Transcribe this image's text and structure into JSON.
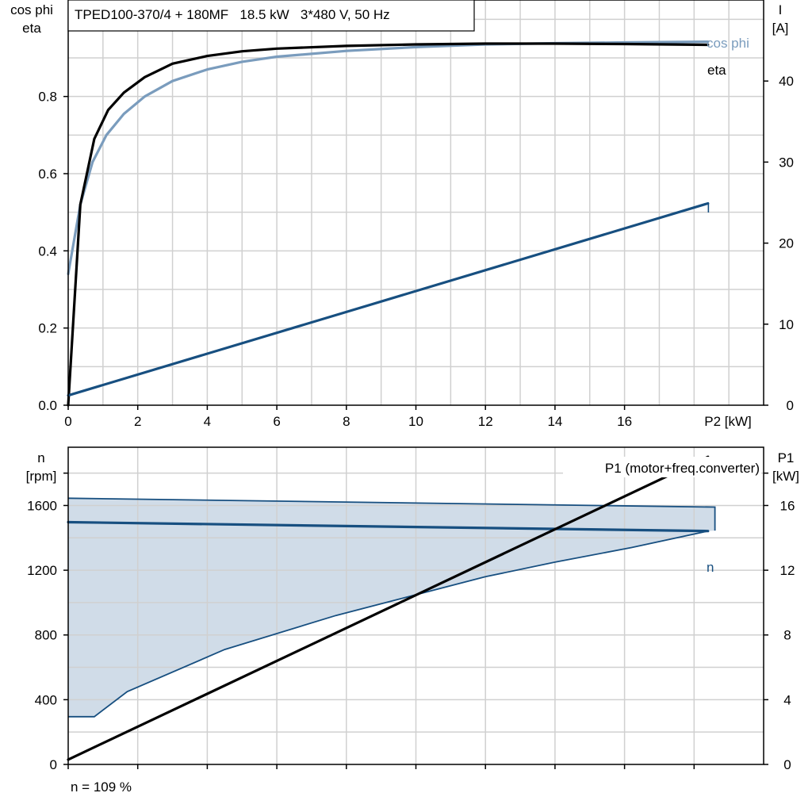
{
  "chart_data": [
    {
      "type": "line",
      "title": "TPED100-370/4 + 180MF   18.5 kW   3*480 V, 50 Hz",
      "xlabel": "P2 [kW]",
      "ylabel_left": [
        "cos phi",
        "eta"
      ],
      "ylabel_right": [
        "I",
        "[A]"
      ],
      "xlim": [
        0,
        20
      ],
      "ylim_left": [
        0,
        1.05
      ],
      "ylim_right": [
        0,
        50
      ],
      "x_ticks": [
        0,
        2,
        4,
        6,
        8,
        10,
        12,
        14,
        16
      ],
      "x_tick_labels": [
        "0",
        "2",
        "4",
        "6",
        "8",
        "10",
        "12",
        "14",
        "16"
      ],
      "y_left_ticks": [
        0.0,
        0.2,
        0.4,
        0.6,
        0.8
      ],
      "y_left_tick_labels": [
        "0.0",
        "0.2",
        "0.4",
        "0.6",
        "0.8"
      ],
      "y_right_ticks": [
        0,
        10,
        20,
        30,
        40
      ],
      "y_right_tick_labels": [
        "0",
        "10",
        "20",
        "30",
        "40"
      ],
      "grid": true,
      "series": [
        {
          "name": "cos phi",
          "axis": "left",
          "color": "#7a9cbd",
          "x": [
            0,
            0.35,
            0.7,
            1.1,
            1.6,
            2.2,
            3,
            4,
            5,
            6,
            8,
            10,
            12,
            14,
            16,
            18.4
          ],
          "y": [
            0.34,
            0.52,
            0.63,
            0.7,
            0.755,
            0.8,
            0.84,
            0.87,
            0.89,
            0.903,
            0.918,
            0.928,
            0.935,
            0.938,
            0.94,
            0.942
          ]
        },
        {
          "name": "eta",
          "axis": "left",
          "color": "#000000",
          "x": [
            0,
            0.35,
            0.75,
            1.15,
            1.6,
            2.2,
            3,
            4,
            5,
            6,
            8,
            10,
            12,
            14,
            16,
            18.4
          ],
          "y": [
            0.0,
            0.52,
            0.69,
            0.765,
            0.81,
            0.85,
            0.885,
            0.905,
            0.917,
            0.924,
            0.931,
            0.935,
            0.937,
            0.937,
            0.936,
            0.934
          ]
        },
        {
          "name": "I",
          "axis": "right",
          "color": "#174f80",
          "x": [
            0,
            18.4
          ],
          "y": [
            1.2,
            24.9
          ]
        }
      ]
    },
    {
      "type": "line",
      "xlim": [
        0,
        20
      ],
      "ylabel_left": [
        "n",
        "[rpm]"
      ],
      "ylabel_right": [
        "P1",
        "[kW]"
      ],
      "ylim_left": [
        0,
        1960
      ],
      "ylim_right": [
        0,
        19.6
      ],
      "x_ticks": [
        0,
        2,
        4,
        6,
        8,
        10,
        12,
        14,
        16,
        18
      ],
      "y_left_ticks": [
        0,
        400,
        800,
        1200,
        1600
      ],
      "y_left_tick_labels": [
        "0",
        "400",
        "800",
        "1200",
        "1600"
      ],
      "y_right_ticks": [
        0,
        4,
        8,
        12,
        16
      ],
      "y_right_tick_labels": [
        "0",
        "4",
        "8",
        "12",
        "16"
      ],
      "grid": true,
      "series": [
        {
          "name": "n",
          "axis": "left",
          "color": "#174f80",
          "x": [
            0,
            18.4
          ],
          "y": [
            1497,
            1442
          ]
        },
        {
          "name": "P1 (motor+freq.converter)",
          "axis": "right",
          "color": "#000000",
          "x": [
            0,
            18.4
          ],
          "y": [
            0.3,
            19.0
          ]
        }
      ],
      "band": {
        "color": "#d0dce8",
        "edge_color": "#174f80",
        "upper": {
          "x": [
            0,
            18.6,
            18.6
          ],
          "y": [
            1645,
            1590,
            1445
          ]
        },
        "lower": {
          "x": [
            0,
            0.75,
            1.7,
            4.5,
            7.7,
            10.2,
            12.0,
            14.0,
            16.2,
            18.4
          ],
          "y": [
            295,
            295,
            450,
            710,
            920,
            1060,
            1160,
            1250,
            1340,
            1442
          ]
        }
      },
      "footnote": "n = 109 %"
    }
  ]
}
